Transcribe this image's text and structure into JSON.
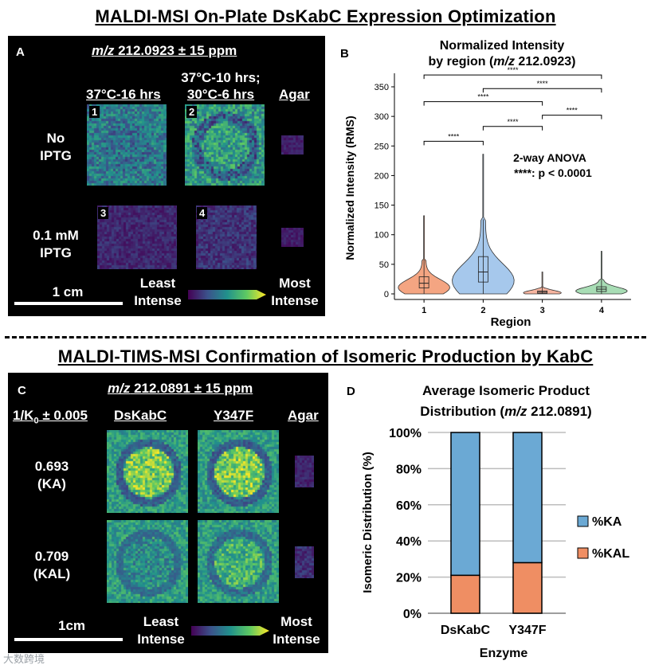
{
  "titles": {
    "top": "MALDI-MSI On-Plate DsKabC Expression Optimization",
    "bottom": "MALDI-TIMS-MSI Confirmation of Isomeric Production by KabC"
  },
  "panelA": {
    "letter": "A",
    "mz_prefix": "m/z",
    "mz_value": " 212.0923 ± 15 ppm",
    "col1": "37°C-16 hrs",
    "col2_line1": "37°C-10 hrs;",
    "col2_line2": "30°C-6 hrs",
    "col3": "Agar",
    "row1_line1": "No",
    "row1_line2": "IPTG",
    "row2_line1": "0.1 mM",
    "row2_line2": "IPTG",
    "nums": [
      "1",
      "2",
      "3",
      "4"
    ],
    "scale": "1 cm",
    "least_1": "Least",
    "least_2": "Intense",
    "most_1": "Most",
    "most_2": "Intense"
  },
  "panelC": {
    "letter": "C",
    "mz_prefix": "m/z",
    "mz_value": " 212.0891 ± 15 ppm",
    "k0_prefix": "1/K",
    "k0_sub": "0",
    "k0_suffix": " ± 0.005",
    "col1": "DsKabC",
    "col2": "Y347F",
    "col3": "Agar",
    "row1_line1": "0.693",
    "row1_line2": "(KA)",
    "row2_line1": "0.709",
    "row2_line2": "(KAL)",
    "scale": "1cm",
    "least_1": "Least",
    "least_2": "Intense",
    "most_1": "Most",
    "most_2": "Intense"
  },
  "colors": {
    "region1": "#f4a582",
    "region2": "#a6c8ec",
    "region3": "#f7b5a0",
    "region4": "#a8ddb5",
    "ka": "#6ba9d4",
    "kal": "#ef8e63",
    "viridis_low": "#440154",
    "viridis_mid": "#21918c",
    "viridis_high": "#fde725"
  },
  "panelB": {
    "letter": "B"
  },
  "panelD": {
    "letter": "D"
  },
  "watermark": "大数跨境",
  "chart_data": [
    {
      "type": "violin",
      "title": "Normalized Intensity",
      "subtitle_prefix": "by region (",
      "subtitle_mz": "m/z",
      "subtitle_suffix": " 212.0923)",
      "xlabel": "Region",
      "ylabel": "Normalized Intensity (RMS)",
      "categories": [
        "1",
        "2",
        "3",
        "4"
      ],
      "ylim": [
        0,
        360
      ],
      "yticks": [
        0,
        50,
        100,
        150,
        200,
        250,
        300,
        350
      ],
      "series": [
        {
          "category": "1",
          "min": 0,
          "q1": 10,
          "median": 18,
          "q3": 29,
          "max": 132,
          "whisker_high": 58
        },
        {
          "category": "2",
          "min": 0,
          "q1": 20,
          "median": 37,
          "q3": 63,
          "max": 236,
          "whisker_high": 126
        },
        {
          "category": "3",
          "min": 0,
          "q1": 1,
          "median": 3,
          "q3": 5,
          "max": 37,
          "whisker_high": 12
        },
        {
          "category": "4",
          "min": 0,
          "q1": 4,
          "median": 8,
          "q3": 12,
          "max": 72,
          "whisker_high": 24
        }
      ],
      "significance": [
        {
          "from": "1",
          "to": "2",
          "y": 258,
          "label": "****"
        },
        {
          "from": "2",
          "to": "3",
          "y": 283,
          "label": "****"
        },
        {
          "from": "3",
          "to": "4",
          "y": 302,
          "label": "****"
        },
        {
          "from": "1",
          "to": "3",
          "y": 325,
          "label": "****"
        },
        {
          "from": "2",
          "to": "4",
          "y": 347,
          "label": "****"
        },
        {
          "from": "1",
          "to": "4",
          "y": 370,
          "label": "****"
        }
      ],
      "annotation_line1": "2-way ANOVA",
      "annotation_line2": "****: p < 0.0001",
      "grid": false
    },
    {
      "type": "bar",
      "stacked": true,
      "title": "Average Isomeric Product",
      "subtitle_prefix": "Distribution (",
      "subtitle_mz": "m/z",
      "subtitle_suffix": " 212.0891)",
      "xlabel": "Enzyme",
      "ylabel": "Isomeric Distribution (%)",
      "categories": [
        "DsKabC",
        "Y347F"
      ],
      "yticks": [
        "0%",
        "20%",
        "40%",
        "60%",
        "80%",
        "100%"
      ],
      "ylim": [
        0,
        100
      ],
      "series": [
        {
          "name": "%KAL",
          "values": [
            21,
            28
          ]
        },
        {
          "name": "%KA",
          "values": [
            79,
            72
          ]
        }
      ],
      "legend": [
        {
          "name": "%KA"
        },
        {
          "name": "%KAL"
        }
      ],
      "legend_position": "right",
      "grid": true
    }
  ]
}
